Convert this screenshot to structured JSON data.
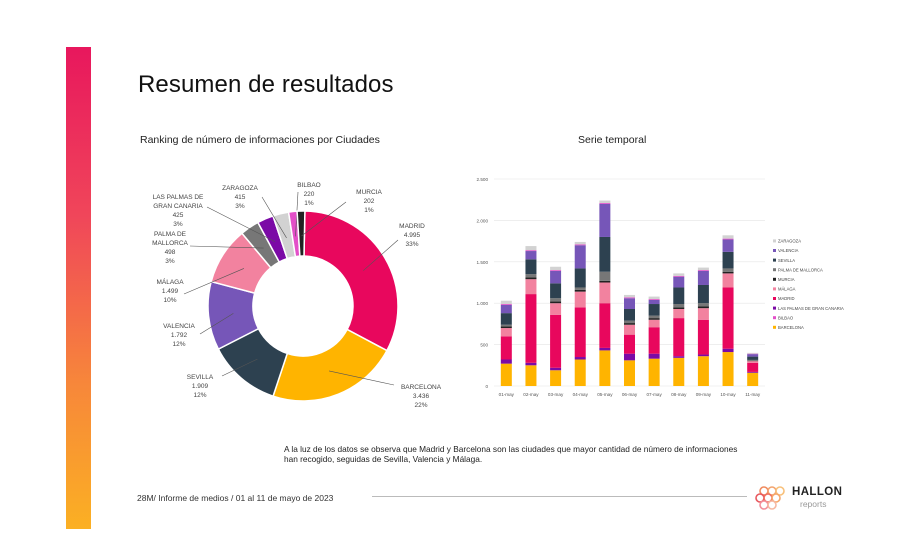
{
  "page": {
    "title": "Resumen de resultados",
    "note": "A la luz de los datos se observa que Madrid y Barcelona son las ciudades que mayor cantidad de número de informaciones han recogido, seguidas de Sevilla, Valencia y Málaga.",
    "footer": "28M/ Informe de medios / 01 al 11 de mayo de 2023",
    "logo": {
      "name": "HALLON",
      "sub": "reports"
    }
  },
  "colors": {
    "accent_top": "#e8175d",
    "accent_bottom": "#fbb023"
  },
  "chart_data": [
    {
      "type": "pie",
      "title": "Ranking de número de informaciones por Ciudades",
      "slices": [
        {
          "name": "MADRID",
          "value": 4995,
          "value_label": "4.995",
          "pct": "33%",
          "color": "#e8075d"
        },
        {
          "name": "BARCELONA",
          "value": 3436,
          "value_label": "3.436",
          "pct": "22%",
          "color": "#ffb400"
        },
        {
          "name": "SEVILLA",
          "value": 1909,
          "value_label": "1.909",
          "pct": "12%",
          "color": "#2d4150"
        },
        {
          "name": "VALENCIA",
          "value": 1792,
          "value_label": "1.792",
          "pct": "12%",
          "color": "#7656b8"
        },
        {
          "name": "MÁLAGA",
          "value": 1499,
          "value_label": "1.499",
          "pct": "10%",
          "color": "#f2829f"
        },
        {
          "name": "PALMA DE MALLORCA",
          "value": 498,
          "value_label": "498",
          "pct": "3%",
          "color": "#777777"
        },
        {
          "name": "LAS PALMAS DE GRAN CANARIA",
          "value": 425,
          "value_label": "425",
          "pct": "3%",
          "color": "#7b0aa6"
        },
        {
          "name": "ZARAGOZA",
          "value": 415,
          "value_label": "415",
          "pct": "3%",
          "color": "#d2d2d2"
        },
        {
          "name": "BILBAO",
          "value": 220,
          "value_label": "220",
          "pct": "1%",
          "color": "#e34fc8"
        },
        {
          "name": "MURCIA",
          "value": 202,
          "value_label": "202",
          "pct": "1%",
          "color": "#222222"
        }
      ]
    },
    {
      "type": "bar",
      "stacked": true,
      "title": "Serie temporal",
      "categories": [
        "01-may",
        "02-may",
        "03-may",
        "04-may",
        "05-may",
        "06-may",
        "07-may",
        "08-may",
        "09-may",
        "10-may",
        "11-may"
      ],
      "ylim": [
        0,
        2500
      ],
      "yticks": [
        0,
        500,
        1000,
        1500,
        2000,
        2500
      ],
      "ytick_labels": [
        "0",
        "500",
        "1.000",
        "1.500",
        "2.000",
        "2.500"
      ],
      "series": [
        {
          "name": "BARCELONA",
          "color": "#ffb400",
          "values": [
            270,
            250,
            190,
            320,
            430,
            310,
            330,
            340,
            360,
            410,
            160
          ]
        },
        {
          "name": "LAS PALMAS DE GRAN CANARIA",
          "color": "#7b0aa6",
          "values": [
            50,
            30,
            30,
            30,
            30,
            80,
            60,
            20,
            20,
            40,
            10
          ]
        },
        {
          "name": "MADRID",
          "color": "#e8075d",
          "values": [
            280,
            830,
            640,
            600,
            540,
            230,
            320,
            460,
            420,
            740,
            110
          ]
        },
        {
          "name": "MÁLAGA",
          "color": "#f2829f",
          "values": [
            100,
            180,
            140,
            190,
            250,
            120,
            90,
            110,
            140,
            170,
            20
          ]
        },
        {
          "name": "MURCIA",
          "color": "#222222",
          "values": [
            20,
            20,
            20,
            20,
            20,
            20,
            20,
            20,
            20,
            20,
            5
          ]
        },
        {
          "name": "PALMA DE MALLORCA",
          "color": "#777777",
          "values": [
            20,
            40,
            40,
            30,
            110,
            30,
            30,
            40,
            40,
            40,
            10
          ]
        },
        {
          "name": "SEVILLA",
          "color": "#2d4150",
          "values": [
            140,
            180,
            180,
            230,
            420,
            140,
            140,
            200,
            220,
            200,
            40
          ]
        },
        {
          "name": "VALENCIA",
          "color": "#7656b8",
          "values": [
            100,
            100,
            150,
            280,
            400,
            130,
            50,
            130,
            170,
            150,
            30
          ]
        },
        {
          "name": "BILBAO",
          "color": "#e34fc8",
          "values": [
            10,
            10,
            10,
            10,
            10,
            10,
            10,
            10,
            10,
            10,
            5
          ]
        },
        {
          "name": "ZARAGOZA",
          "color": "#d2d2d2",
          "values": [
            40,
            50,
            40,
            30,
            30,
            30,
            30,
            30,
            30,
            40,
            10
          ]
        }
      ],
      "legend": [
        "ZARAGOZA",
        "VALENCIA",
        "SEVILLA",
        "PALMA DE MALLORCA",
        "MURCIA",
        "MÁLAGA",
        "MADRID",
        "LAS PALMAS DE GRAN CANARIA",
        "BILBAO",
        "BARCELONA"
      ],
      "legend_position": "right"
    }
  ]
}
